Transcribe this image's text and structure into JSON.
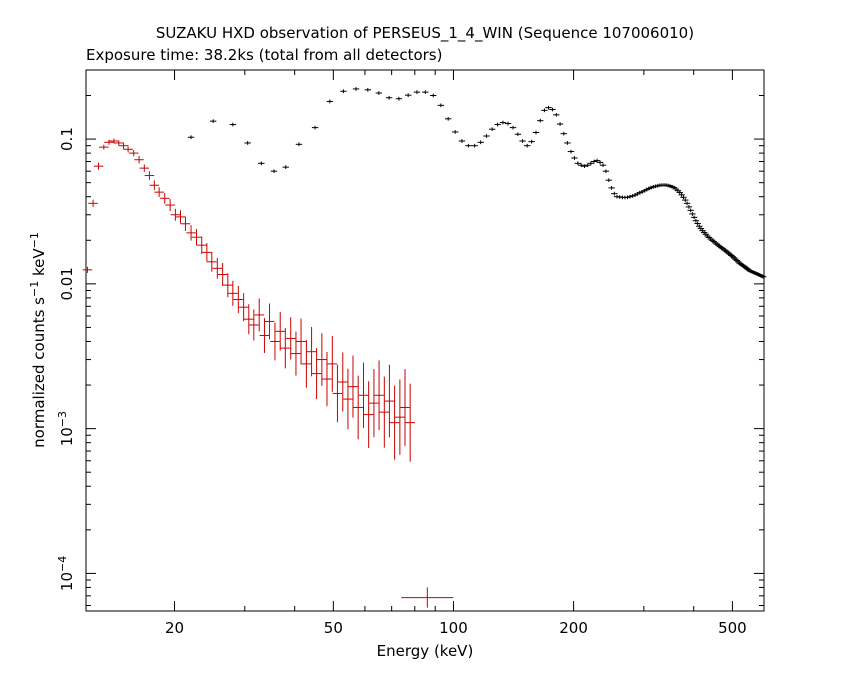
{
  "chart_data": {
    "type": "scatter",
    "title": "SUZAKU HXD observation of PERSEUS_1_4_WIN (Sequence 107006010)",
    "subtitle": "Exposure time: 38.2ks (total from all detectors)",
    "xlabel": "Energy (keV)",
    "ylabel": "normalized counts s^-1 keV^-1",
    "x_scale": "log",
    "y_scale": "log",
    "xlim": [
      12,
      600
    ],
    "ylim": [
      5.5e-05,
      0.3
    ],
    "x_tick_labels": [
      "20",
      "50",
      "100",
      "200",
      "500"
    ],
    "x_tick_values": [
      20,
      50,
      100,
      200,
      500
    ],
    "y_tick_labels": [
      {
        "value": 0.1,
        "base": "0.1",
        "exp": ""
      },
      {
        "value": 0.01,
        "base": "0.01",
        "exp": ""
      },
      {
        "value": 0.001,
        "base": "10",
        "exp": "−3"
      },
      {
        "value": 0.0001,
        "base": "10",
        "exp": "−4"
      }
    ],
    "series": [
      {
        "color": "#cc0000",
        "marker": "cross-errorbar",
        "x": [
          12.1,
          12.5,
          12.9,
          13.3,
          13.7,
          14.1,
          14.5,
          14.9,
          15.3,
          15.8,
          16.3,
          16.8,
          17.3,
          17.8,
          18.3,
          18.9,
          19.5,
          20.1,
          20.7,
          21.3,
          22.0,
          22.7,
          23.4,
          24.1,
          24.8,
          25.6,
          26.4,
          27.2,
          28.0,
          28.9,
          29.8,
          30.7,
          31.6,
          32.6,
          33.6,
          34.6,
          35.7,
          36.8,
          37.9,
          39.1,
          40.3,
          41.5,
          42.8,
          44.1,
          45.4,
          46.8,
          48.2,
          49.7,
          51.2,
          52.8,
          54.4,
          56.0,
          57.7,
          59.5,
          61.3,
          63.2,
          65.1,
          67.1,
          69.1,
          71.2,
          73.4,
          75.6,
          77.9
        ],
        "y": [
          0.0125,
          0.036,
          0.065,
          0.088,
          0.095,
          0.097,
          0.094,
          0.09,
          0.085,
          0.08,
          0.072,
          0.063,
          0.056,
          0.048,
          0.043,
          0.039,
          0.035,
          0.03,
          0.029,
          0.026,
          0.0225,
          0.021,
          0.0185,
          0.0165,
          0.0142,
          0.0128,
          0.0116,
          0.0098,
          0.0086,
          0.0078,
          0.0069,
          0.0057,
          0.0052,
          0.0061,
          0.0044,
          0.0055,
          0.004,
          0.0047,
          0.0036,
          0.0042,
          0.0033,
          0.004,
          0.0028,
          0.0034,
          0.0024,
          0.003,
          0.0022,
          0.0028,
          0.00175,
          0.0021,
          0.0016,
          0.00195,
          0.0014,
          0.0017,
          0.00125,
          0.0015,
          0.0017,
          0.0013,
          0.00155,
          0.0011,
          0.0012,
          0.0014,
          0.0011
        ],
        "xerr": 0.012,
        "yerr_factor": [
          1.05,
          1.06,
          1.06,
          1.04,
          1.04,
          1.04,
          1.04,
          1.05,
          1.05,
          1.05,
          1.06,
          1.06,
          1.07,
          1.08,
          1.08,
          1.09,
          1.1,
          1.1,
          1.11,
          1.12,
          1.13,
          1.14,
          1.15,
          1.16,
          1.17,
          1.18,
          1.2,
          1.21,
          1.22,
          1.24,
          1.25,
          1.27,
          1.28,
          1.3,
          1.32,
          1.33,
          1.35,
          1.36,
          1.38,
          1.4,
          1.42,
          1.44,
          1.46,
          1.48,
          1.5,
          1.52,
          1.54,
          1.56,
          1.58,
          1.6,
          1.62,
          1.64,
          1.66,
          1.68,
          1.7,
          1.72,
          1.74,
          1.76,
          1.78,
          1.8,
          1.82,
          1.84,
          1.86
        ],
        "extra_point": {
          "x": 86,
          "y": 6.8e-05,
          "xlo": 74,
          "xhi": 100,
          "ylo": 5.8e-05,
          "yhi": 8e-05
        }
      },
      {
        "color": "#000000",
        "marker": "cross-errorbar",
        "x": [
          22.0,
          25.0,
          28.0,
          30.5,
          33.0,
          35.5,
          38.0,
          41.0,
          45.0,
          49.0,
          53.0,
          57.0,
          61.0,
          65.0,
          69.0,
          73.0,
          77.0,
          81.0,
          85.0,
          89.0,
          93.0,
          97.0,
          101,
          105,
          109,
          113,
          117,
          121,
          125,
          129,
          133,
          137,
          141,
          145,
          149,
          153,
          157,
          161,
          165,
          169,
          173,
          177,
          181,
          185,
          189,
          193,
          197,
          201,
          205,
          209,
          213,
          217,
          221,
          225,
          229,
          233,
          237,
          241,
          245,
          249,
          253,
          257,
          261,
          265,
          269,
          273,
          277,
          281,
          285,
          289,
          293,
          297,
          301,
          305,
          309,
          313,
          317,
          321,
          325,
          329,
          333,
          337,
          341,
          345,
          349,
          353,
          357,
          361,
          365,
          369,
          373,
          377,
          381,
          385,
          389,
          393,
          397,
          401,
          405,
          409,
          413,
          417,
          421,
          425,
          429,
          433,
          437,
          441,
          445,
          449,
          453,
          457,
          461,
          465,
          469,
          473,
          477,
          481,
          485,
          489,
          493,
          497,
          501,
          505,
          509,
          513,
          517,
          521,
          525,
          529,
          533,
          537,
          541,
          545,
          549,
          553,
          557,
          561,
          565,
          569,
          573,
          577,
          581,
          585,
          589,
          593,
          597
        ],
        "y": [
          0.103,
          0.133,
          0.126,
          0.094,
          0.068,
          0.06,
          0.064,
          0.092,
          0.12,
          0.182,
          0.214,
          0.222,
          0.219,
          0.208,
          0.193,
          0.19,
          0.201,
          0.211,
          0.211,
          0.2,
          0.171,
          0.138,
          0.112,
          0.097,
          0.09,
          0.09,
          0.095,
          0.105,
          0.117,
          0.126,
          0.13,
          0.128,
          0.12,
          0.108,
          0.097,
          0.09,
          0.096,
          0.111,
          0.134,
          0.158,
          0.165,
          0.16,
          0.147,
          0.127,
          0.109,
          0.094,
          0.082,
          0.074,
          0.068,
          0.066,
          0.065,
          0.066,
          0.068,
          0.07,
          0.071,
          0.069,
          0.066,
          0.06,
          0.052,
          0.046,
          0.042,
          0.04,
          0.0398,
          0.0396,
          0.0395,
          0.0396,
          0.04,
          0.0405,
          0.041,
          0.0418,
          0.0426,
          0.0432,
          0.044,
          0.0448,
          0.0456,
          0.0462,
          0.0468,
          0.0472,
          0.0476,
          0.048,
          0.0481,
          0.0482,
          0.0481,
          0.0478,
          0.0474,
          0.0469,
          0.0462,
          0.0452,
          0.044,
          0.0428,
          0.0412,
          0.0396,
          0.0379,
          0.036,
          0.034,
          0.0322,
          0.0304,
          0.0288,
          0.0273,
          0.0261,
          0.025,
          0.0241,
          0.0233,
          0.0226,
          0.022,
          0.0214,
          0.0209,
          0.0204,
          0.02,
          0.0196,
          0.0192,
          0.0188,
          0.0185,
          0.0181,
          0.0178,
          0.0175,
          0.0172,
          0.0169,
          0.0166,
          0.0163,
          0.016,
          0.0157,
          0.0154,
          0.0151,
          0.0148,
          0.0145,
          0.0142,
          0.0139,
          0.0137,
          0.0135,
          0.0133,
          0.0131,
          0.0129,
          0.0127,
          0.0125,
          0.0123,
          0.0122,
          0.0121,
          0.012,
          0.0119,
          0.0118,
          0.0117,
          0.0116,
          0.0115,
          0.0114,
          0.0113,
          0.0112
        ],
        "xerr": 0.008,
        "yerr_factor": 1.03
      }
    ]
  }
}
